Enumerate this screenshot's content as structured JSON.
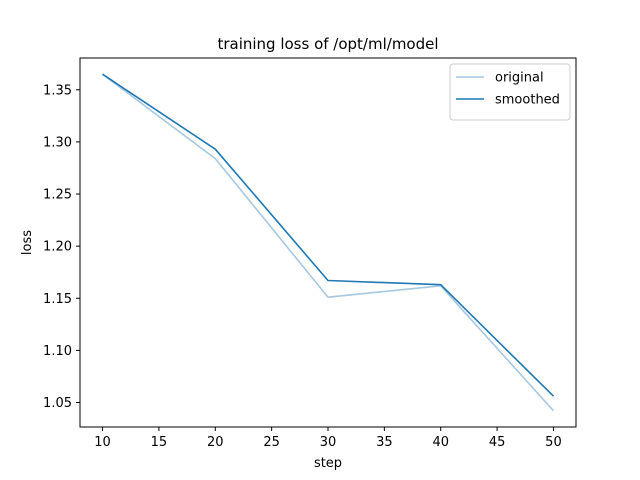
{
  "chart_data": {
    "type": "line",
    "title": "training loss of /opt/ml/model",
    "xlabel": "step",
    "ylabel": "loss",
    "xlim": [
      8,
      52
    ],
    "ylim": [
      1.0265,
      1.3805
    ],
    "xticks": [
      10,
      15,
      20,
      25,
      30,
      35,
      40,
      45,
      50
    ],
    "yticks": [
      1.05,
      1.1,
      1.15,
      1.2,
      1.25,
      1.3,
      1.35
    ],
    "grid": false,
    "legend_position": "top-right",
    "series": [
      {
        "name": "original",
        "color": "#a6c8e0",
        "x": [
          10,
          20,
          30,
          40,
          50
        ],
        "y": [
          1.365,
          1.284,
          1.151,
          1.162,
          1.042
        ]
      },
      {
        "name": "smoothed",
        "color": "#1f77b4",
        "x": [
          10,
          20,
          30,
          40,
          50
        ],
        "y": [
          1.365,
          1.293,
          1.167,
          1.163,
          1.056
        ]
      }
    ]
  }
}
